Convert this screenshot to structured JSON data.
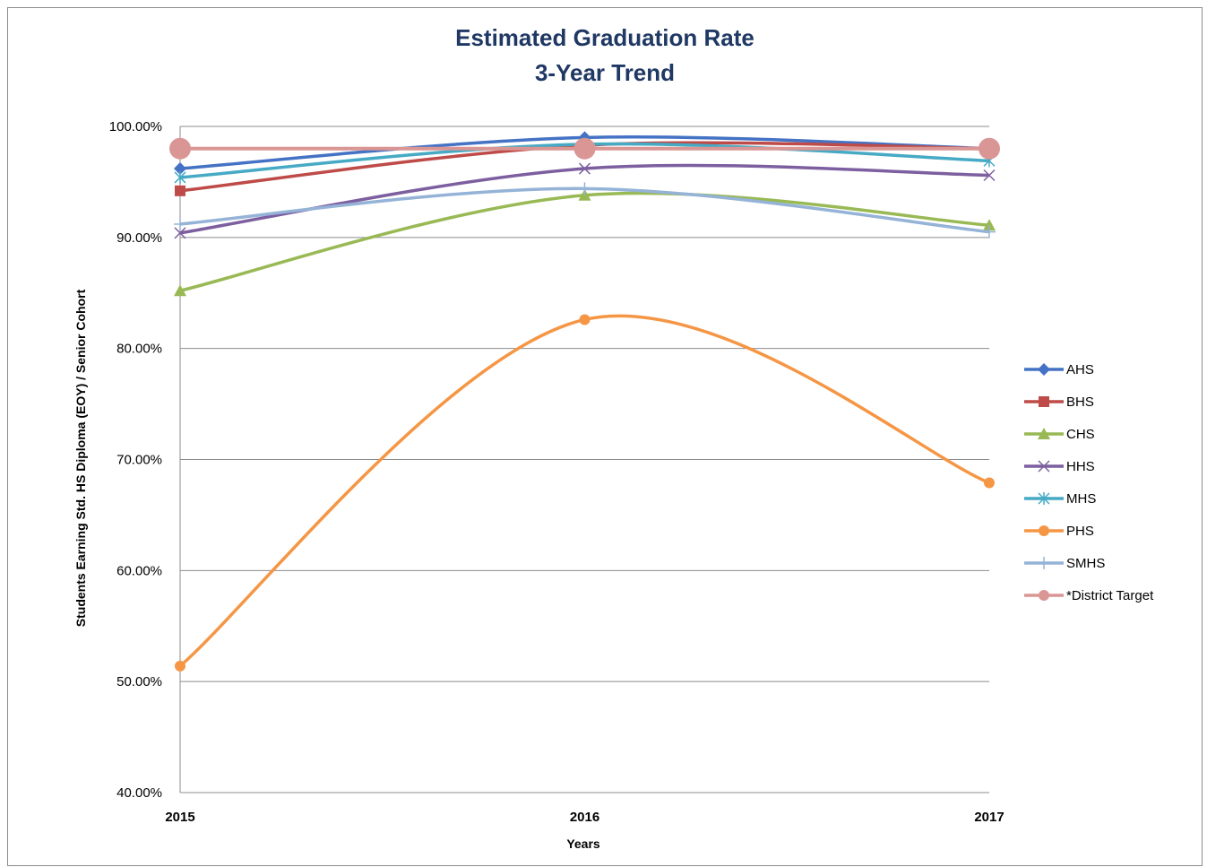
{
  "chart_data": {
    "type": "line",
    "title": "Estimated Graduation Rate",
    "subtitle": "3-Year Trend",
    "xlabel": "Years",
    "ylabel": "Students Earning Std. HS Diploma (EOY) / Senior Cohort",
    "categories": [
      "2015",
      "2016",
      "2017"
    ],
    "ylim": [
      40,
      100
    ],
    "yticks": [
      40,
      50,
      60,
      70,
      80,
      90,
      100
    ],
    "ytick_labels": [
      "40.00%",
      "50.00%",
      "60.00%",
      "70.00%",
      "80.00%",
      "90.00%",
      "100.00%"
    ],
    "grid": true,
    "smooth": true,
    "legend_position": "right",
    "series": [
      {
        "name": "AHS",
        "values": [
          96.2,
          99.0,
          98.0
        ],
        "color": "#4472c4",
        "marker": "diamond"
      },
      {
        "name": "BHS",
        "values": [
          94.2,
          98.3,
          98.0
        ],
        "color": "#be4b48",
        "marker": "square"
      },
      {
        "name": "CHS",
        "values": [
          85.2,
          93.8,
          91.1
        ],
        "color": "#98b954",
        "marker": "triangle"
      },
      {
        "name": "HHS",
        "values": [
          90.4,
          96.2,
          95.6
        ],
        "color": "#7d5fa0",
        "marker": "x"
      },
      {
        "name": "MHS",
        "values": [
          95.4,
          98.4,
          96.9
        ],
        "color": "#46aac5",
        "marker": "asterisk"
      },
      {
        "name": "PHS",
        "values": [
          51.4,
          82.6,
          67.9
        ],
        "color": "#f59645",
        "marker": "circle"
      },
      {
        "name": "SMHS",
        "values": [
          91.2,
          94.4,
          90.5
        ],
        "color": "#95b3d7",
        "marker": "plus"
      },
      {
        "name": "*District Target",
        "values": [
          98.0,
          98.0,
          98.0
        ],
        "color": "#d99694",
        "marker": "bigcircle"
      }
    ]
  }
}
